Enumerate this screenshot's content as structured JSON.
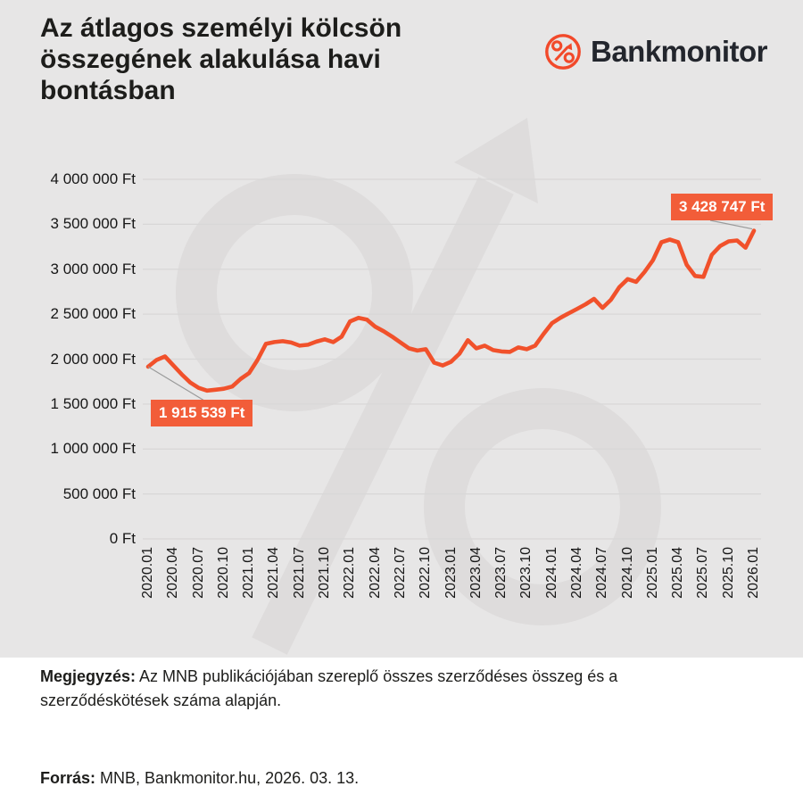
{
  "header": {
    "title_lines": [
      "Az átlagos személyi kölcsön",
      "összegének alakulása havi",
      "bontásban"
    ],
    "logo_brand": "Bankmonitor"
  },
  "chart_data": {
    "type": "line",
    "title": "Az átlagos személyi kölcsön összegének alakulása havi bontásban",
    "unit": "Ft",
    "frequency": "monthly",
    "x_start": "2020.01",
    "x_end": "2026.01",
    "x_tick_labels": [
      "2020.01",
      "2020.04",
      "2020.07",
      "2020.10",
      "2021.01",
      "2021.04",
      "2021.07",
      "2021.10",
      "2022.01",
      "2022.04",
      "2022.07",
      "2022.10",
      "2023.01",
      "2023.04",
      "2023.07",
      "2023.10",
      "2024.01",
      "2024.04",
      "2024.07",
      "2024.10",
      "2025.01",
      "2025.04",
      "2025.07",
      "2025.10",
      "2026.01"
    ],
    "months_per_tick": 3,
    "values": [
      1915539,
      1990000,
      2030000,
      1930000,
      1830000,
      1740000,
      1680000,
      1650000,
      1660000,
      1670000,
      1695000,
      1780000,
      1845000,
      1990000,
      2170000,
      2190000,
      2200000,
      2185000,
      2150000,
      2160000,
      2195000,
      2220000,
      2190000,
      2250000,
      2420000,
      2460000,
      2440000,
      2360000,
      2310000,
      2250000,
      2185000,
      2120000,
      2095000,
      2110000,
      1960000,
      1930000,
      1970000,
      2060000,
      2210000,
      2120000,
      2150000,
      2100000,
      2085000,
      2080000,
      2130000,
      2110000,
      2150000,
      2280000,
      2400000,
      2460000,
      2510000,
      2560000,
      2610000,
      2670000,
      2570000,
      2660000,
      2800000,
      2890000,
      2860000,
      2970000,
      3100000,
      3300000,
      3330000,
      3300000,
      3050000,
      2925000,
      2915000,
      3160000,
      3260000,
      3310000,
      3320000,
      3240000,
      3428747
    ],
    "ylim": [
      0,
      4000000
    ],
    "y_tick_step": 500000,
    "y_tick_labels": [
      "0 Ft",
      "500 000 Ft",
      "1 000 000 Ft",
      "1 500 000 Ft",
      "2 000 000 Ft",
      "2 500 000 Ft",
      "3 000 000 Ft",
      "3 500 000 Ft",
      "4 000 000 Ft"
    ],
    "grid": "horizontal",
    "legend": "none",
    "annotations": [
      {
        "target": "first",
        "label": "1 915 539 Ft",
        "value": 1915539
      },
      {
        "target": "last",
        "label": "3 428 747 Ft",
        "value": 3428747
      }
    ]
  },
  "colors": {
    "background": "#e7e6e6",
    "panel_white": "#ffffff",
    "line_orange": "#f1512b",
    "callout_bg": "#f25d39",
    "logo_orange": "#f2492a",
    "watermark": "#dedcdc",
    "gridline": "#d8d7d7",
    "leader_gray": "#9a9a9a",
    "text_dark": "#1d1d1b"
  },
  "footer": {
    "note_label": "Megjegyzés:",
    "note_text": " Az MNB publikációjában szereplő összes szerződéses összeg és a szerződéskötések száma alapján.",
    "source_label": "Forrás:",
    "source_text": " MNB, Bankmonitor.hu, 2026. 03. 13."
  }
}
